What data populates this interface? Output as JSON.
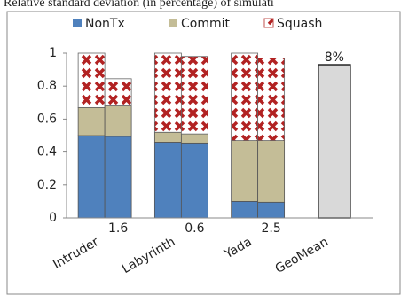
{
  "chart_data": {
    "type": "grouped_stacked_bar",
    "title": "Relative standard deviation (in percentage) of simulati",
    "categories": [
      "Intruder",
      "Labyrinth",
      "Yada",
      "GeoMean"
    ],
    "series": [
      {
        "name": "NonTx",
        "color": "#4f81bd",
        "values": [
          [
            0.5,
            0.495
          ],
          [
            0.46,
            0.455
          ],
          [
            0.1,
            0.095
          ],
          null
        ]
      },
      {
        "name": "Commit",
        "color": "#c4bd97",
        "values": [
          [
            0.17,
            0.185
          ],
          [
            0.06,
            0.055
          ],
          [
            0.37,
            0.375
          ],
          null
        ]
      },
      {
        "name": "Squash",
        "color": "#c0504d",
        "pattern": "cross",
        "values": [
          [
            0.33,
            0.165
          ],
          [
            0.48,
            0.47
          ],
          [
            0.53,
            0.5
          ],
          null
        ]
      }
    ],
    "overall": {
      "color": "#d9d9d9",
      "values": [
        null,
        null,
        null,
        0.93
      ]
    },
    "annotations": [
      "1.6",
      "0.6",
      "2.5",
      "8%"
    ],
    "ylim": [
      0,
      1
    ],
    "yticks": [
      0,
      0.2,
      0.4,
      0.6,
      0.8,
      1
    ],
    "grid": false
  }
}
